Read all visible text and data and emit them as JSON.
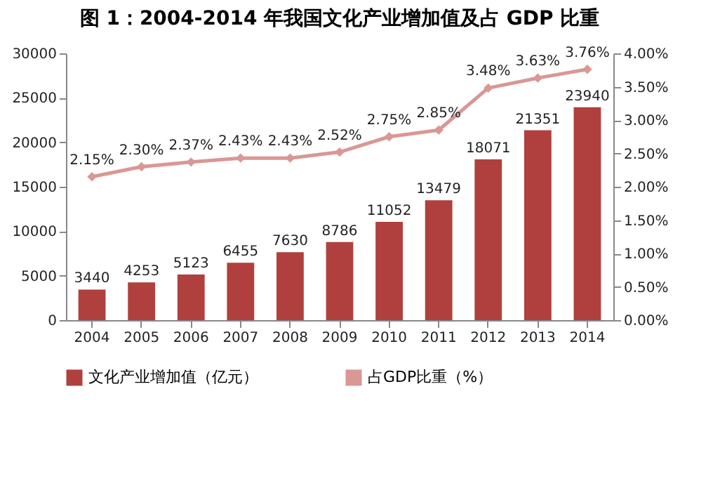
{
  "chart_data": {
    "type": "bar",
    "title": "图 1：2004-2014 年我国文化产业增加值及占 GDP 比重",
    "categories": [
      "2004",
      "2005",
      "2006",
      "2007",
      "2008",
      "2009",
      "2010",
      "2011",
      "2012",
      "2013",
      "2014"
    ],
    "series": [
      {
        "name": "文化产业增加值（亿元）",
        "color": "#b0403d",
        "values": [
          3440,
          4253,
          5123,
          6455,
          7630,
          8786,
          11052,
          13479,
          18071,
          21351,
          23940
        ],
        "value_labels": [
          "3440",
          "4253",
          "5123",
          "6455",
          "7630",
          "8786",
          "11052",
          "13479",
          "18071",
          "21351",
          "23940"
        ]
      },
      {
        "name": "占GDP比重（%）",
        "type": "line",
        "axis": "y2",
        "color": "#d99795",
        "values": [
          2.15,
          2.3,
          2.37,
          2.43,
          2.43,
          2.52,
          2.75,
          2.85,
          3.48,
          3.63,
          3.76
        ],
        "value_labels": [
          "2.15%",
          "2.30%",
          "2.37%",
          "2.43%",
          "2.43%",
          "2.52%",
          "2.75%",
          "2.85%",
          "3.48%",
          "3.63%",
          "3.76%"
        ]
      }
    ],
    "ylim": [
      0,
      30000
    ],
    "yticks": [
      0,
      5000,
      10000,
      15000,
      20000,
      25000,
      30000
    ],
    "y2lim": [
      0,
      4
    ],
    "y2ticks": [
      {
        "value": 0,
        "label": "0.00%"
      },
      {
        "value": 0.5,
        "label": "0.50%"
      },
      {
        "value": 1,
        "label": "1.00%"
      },
      {
        "value": 1.5,
        "label": "1.50%"
      },
      {
        "value": 2,
        "label": "2.00%"
      },
      {
        "value": 2.5,
        "label": "2.50%"
      },
      {
        "value": 3,
        "label": "3.00%"
      },
      {
        "value": 3.5,
        "label": "3.50%"
      },
      {
        "value": 4,
        "label": "4.00%"
      }
    ],
    "marker": "diamond",
    "grid": false,
    "legend": "bottom"
  }
}
